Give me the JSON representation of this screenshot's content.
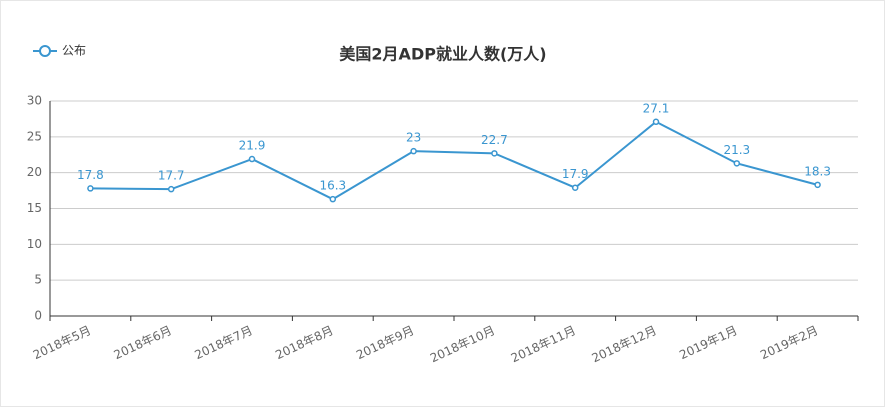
{
  "chart_data": {
    "type": "line",
    "title": "美国2月ADP就业人数(万人)",
    "categories": [
      "2018年5月",
      "2018年6月",
      "2018年7月",
      "2018年8月",
      "2018年9月",
      "2018年10月",
      "2018年11月",
      "2018年12月",
      "2019年1月",
      "2019年2月"
    ],
    "series": [
      {
        "name": "公布",
        "color": "#3a96d0",
        "values": [
          17.8,
          17.7,
          21.9,
          16.3,
          23,
          22.7,
          17.9,
          27.1,
          21.3,
          18.3
        ]
      }
    ],
    "ylim": [
      0,
      30
    ],
    "yticks": [
      0,
      5,
      10,
      15,
      20,
      25,
      30
    ],
    "grid": true,
    "legend": "top-left"
  }
}
